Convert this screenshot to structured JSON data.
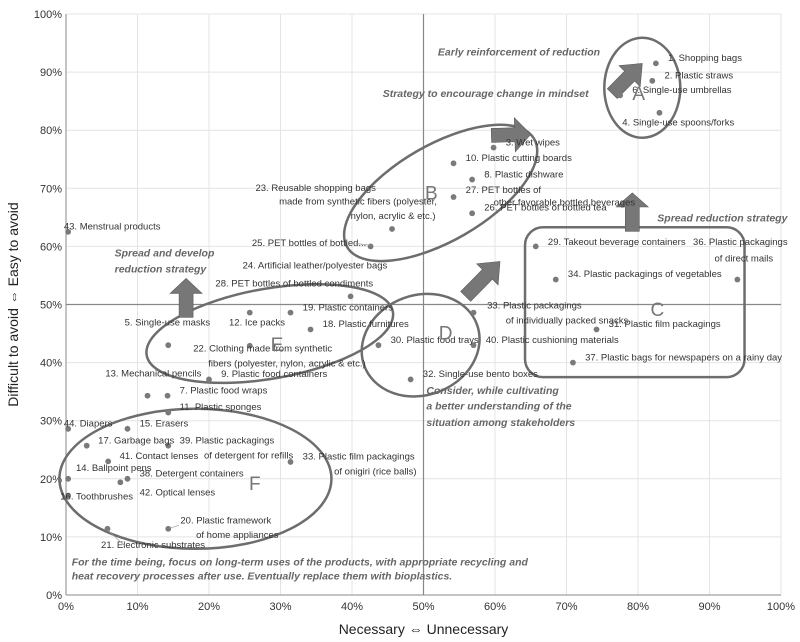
{
  "chart_data": {
    "type": "scatter",
    "xlabel": "Necessary  ⇔  Unnecessary",
    "ylabel": "Difficult to avoid  ⇔  Easy to avoid",
    "xlim": [
      0,
      100
    ],
    "ylim": [
      0,
      100
    ],
    "xticks": [
      "0%",
      "10%",
      "20%",
      "30%",
      "40%",
      "50%",
      "60%",
      "70%",
      "80%",
      "90%",
      "100%"
    ],
    "yticks": [
      "0%",
      "10%",
      "20%",
      "30%",
      "40%",
      "50%",
      "60%",
      "70%",
      "80%",
      "90%",
      "100%"
    ],
    "grid": true,
    "points": [
      {
        "label": "1.  Shopping bags",
        "x": 82.5,
        "y": 91.5
      },
      {
        "label": "2.  Plastic straws",
        "x": 82,
        "y": 88.5
      },
      {
        "label": "6.  Single-use umbrellas",
        "x": 77.5,
        "y": 86
      },
      {
        "label": "4.  Single-use spoons/forks",
        "x": 83,
        "y": 83
      },
      {
        "label": "3.  Wet wipes",
        "x": 59.8,
        "y": 77
      },
      {
        "label": "10.  Plastic cutting boards",
        "x": 54.2,
        "y": 74.3
      },
      {
        "label": "8.  Plastic dishware",
        "x": 56.8,
        "y": 71.5
      },
      {
        "label": "27.  PET bottles of other favorable bottled beverages",
        "x": 54.2,
        "y": 68.5
      },
      {
        "label": "26.  PET bottles of bottled tea",
        "x": 56.8,
        "y": 65.7
      },
      {
        "label": "23.  Reusable shopping bags made from synthetic fibers (polyester, nylon, acrylic & etc.)",
        "x": 45.6,
        "y": 63
      },
      {
        "label": "25.  PET bottles of bottled...",
        "x": 42.6,
        "y": 60
      },
      {
        "label": "43.  Menstrual products",
        "x": 0.3,
        "y": 62.5
      },
      {
        "label": "29.  Takeout beverage containers",
        "x": 65.7,
        "y": 60
      },
      {
        "label": "36.  Plastic packagings of direct mails",
        "x": 93.9,
        "y": 54.3
      },
      {
        "label": "34.  Plastic packagings of vegetables",
        "x": 68.5,
        "y": 54.3
      },
      {
        "label": "31.  Plastic film packagings",
        "x": 74.2,
        "y": 45.7
      },
      {
        "label": "37.  Plastic bags for newspapers on a rainy day",
        "x": 70.9,
        "y": 40
      },
      {
        "label": "33.  Plastic packagings of individually packed snacks",
        "x": 57,
        "y": 48.6
      },
      {
        "label": "30.  Plastic food trays",
        "x": 43.7,
        "y": 43
      },
      {
        "label": "40.  Plastic cushioning materials",
        "x": 57,
        "y": 43
      },
      {
        "label": "32.  Single-use bento boxes",
        "x": 48.2,
        "y": 37.1
      },
      {
        "label": "24.  Artificial leather/polyester bags",
        "x": null,
        "y": null
      },
      {
        "label": "28.  PET bottles of bottled condiments",
        "x": 39.8,
        "y": 51.4
      },
      {
        "label": "12.  Ice packs",
        "x": 25.7,
        "y": 48.6
      },
      {
        "label": "19.  Plastic containers",
        "x": 31.4,
        "y": 48.6
      },
      {
        "label": "18.  Plastic furnitures",
        "x": 34.2,
        "y": 45.7
      },
      {
        "label": "5.  Single-use masks",
        "x": 14.3,
        "y": 43
      },
      {
        "label": "22.  Clothing made from synthetic fibers (polyester, nylon, acrylic & etc.)",
        "x": 25.7,
        "y": 42.9
      },
      {
        "label": "9.  Plastic food containers",
        "x": 20,
        "y": 37.1
      },
      {
        "label": "13.  Mechanical pencils",
        "x": 11.4,
        "y": 34.3
      },
      {
        "label": "7.  Plastic food wraps",
        "x": 14.2,
        "y": 34.3
      },
      {
        "label": "11.  Plastic sponges",
        "x": 14.3,
        "y": 31.4
      },
      {
        "label": "44.  Diapers",
        "x": 0.3,
        "y": 28.6
      },
      {
        "label": "15.  Erasers",
        "x": 8.6,
        "y": 28.6
      },
      {
        "label": "17.  Garbage bags",
        "x": 2.9,
        "y": 25.7
      },
      {
        "label": "41.  Contact lenses",
        "x": 5.9,
        "y": 23
      },
      {
        "label": "39.  Plastic packagings of detergent for refills",
        "x": 14.3,
        "y": 25.7
      },
      {
        "label": "33.  Plastic film packagings of onigiri (rice balls)",
        "x": 31.4,
        "y": 22.9
      },
      {
        "label": "14.  Ballpoint pens",
        "x": 0.3,
        "y": 20
      },
      {
        "label": "38.  Detergent containers",
        "x": 8.6,
        "y": 20
      },
      {
        "label": "16.  Toothbrushes",
        "x": 0.3,
        "y": 17.1
      },
      {
        "label": "42.  Optical lenses",
        "x": 7.6,
        "y": 19.4
      },
      {
        "label": "20.  Plastic framework of home appliances",
        "x": 14.3,
        "y": 11.4
      },
      {
        "label": "21.  Electronic substrates",
        "x": 5.8,
        "y": 11.4
      }
    ],
    "groups": [
      "A",
      "B",
      "C",
      "D",
      "E",
      "F"
    ],
    "annotations": [
      "Early reinforcement of reduction",
      "Strategy to encourage change in mindset",
      "Spread reduction strategy",
      "Spread and develop reduction strategy",
      "Consider, while cultivating a better understanding of the situation among stakeholders",
      "For the time being, focus on long-term uses of the products, with appropriate recycling and heat recovery processes after use. Eventually replace them with bioplastics."
    ]
  }
}
